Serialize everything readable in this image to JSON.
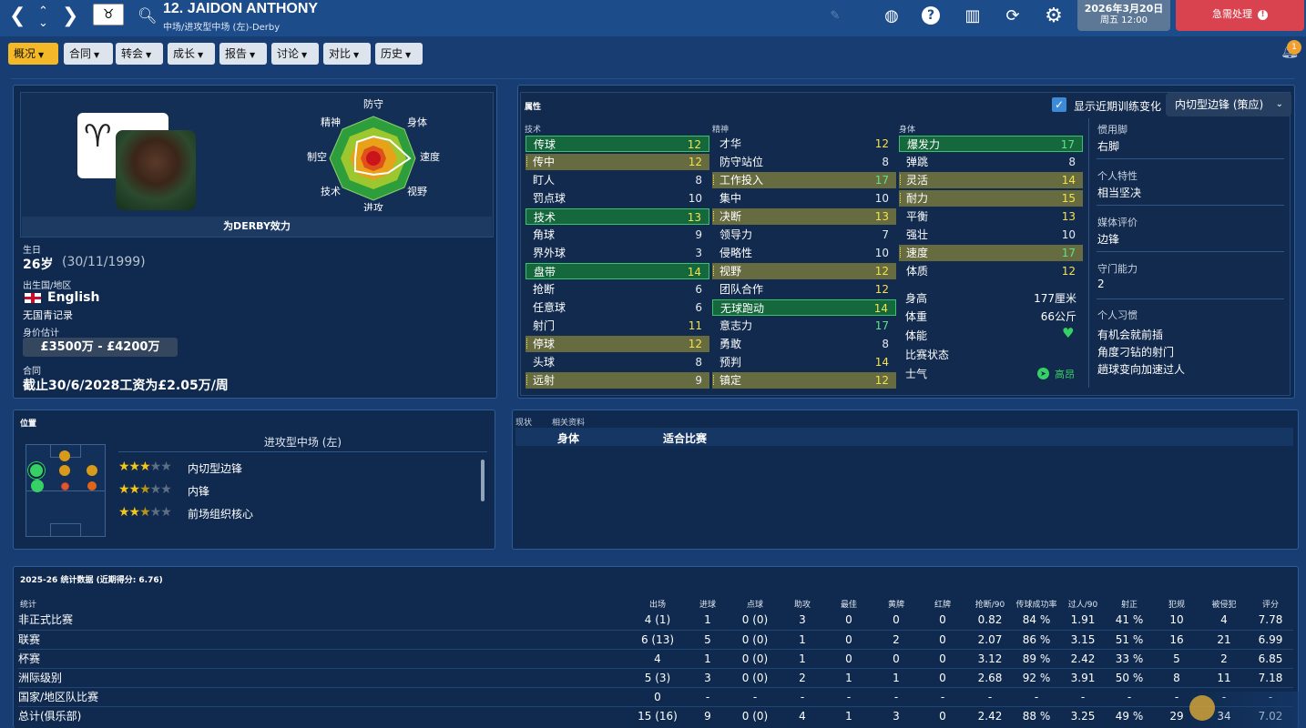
{
  "header": {
    "player_name": "12. JAIDON ANTHONY",
    "position_club": "中场/进攻型中场 (左)-Derby",
    "date": "2026年3月20日",
    "time": "周五 12:00",
    "urgent": "急需处理"
  },
  "tabs": [
    "概况",
    "合同",
    "转会",
    "成长",
    "报告",
    "讨论",
    "对比",
    "历史"
  ],
  "notifications": "1",
  "profile": {
    "plays_for": "为DERBY效力",
    "birth_label": "生日",
    "age": "26岁",
    "dob": "(30/11/1999)",
    "nation_label": "出生国/地区",
    "nation": "English",
    "youth": "无国青记录",
    "value_label": "身价估计",
    "value": "£3500万 - £4200万",
    "contract_label": "合同",
    "contract": "截止30/6/2028工资为£2.05万/周"
  },
  "radar": {
    "labels": [
      "防守",
      "身体",
      "速度",
      "视野",
      "进攻",
      "技术",
      "制空",
      "精神"
    ]
  },
  "attributes": {
    "title": "属性",
    "show_training": "显示近期训练变化",
    "role_select": "内切型边锋 (策应)",
    "technical_title": "技术",
    "mental_title": "精神",
    "physical_title": "身体",
    "technical": [
      {
        "name": "传球",
        "value": "12"
      },
      {
        "name": "传中",
        "value": "12"
      },
      {
        "name": "盯人",
        "value": "8"
      },
      {
        "name": "罚点球",
        "value": "10"
      },
      {
        "name": "技术",
        "value": "13"
      },
      {
        "name": "角球",
        "value": "9"
      },
      {
        "name": "界外球",
        "value": "3"
      },
      {
        "name": "盘带",
        "value": "14"
      },
      {
        "name": "抢断",
        "value": "6"
      },
      {
        "name": "任意球",
        "value": "6"
      },
      {
        "name": "射门",
        "value": "11"
      },
      {
        "name": "停球",
        "value": "12"
      },
      {
        "name": "头球",
        "value": "8"
      },
      {
        "name": "远射",
        "value": "9"
      }
    ],
    "mental": [
      {
        "name": "才华",
        "value": "12"
      },
      {
        "name": "防守站位",
        "value": "8"
      },
      {
        "name": "工作投入",
        "value": "17"
      },
      {
        "name": "集中",
        "value": "10"
      },
      {
        "name": "决断",
        "value": "13"
      },
      {
        "name": "领导力",
        "value": "7"
      },
      {
        "name": "侵略性",
        "value": "10"
      },
      {
        "name": "视野",
        "value": "12"
      },
      {
        "name": "团队合作",
        "value": "12"
      },
      {
        "name": "无球跑动",
        "value": "14"
      },
      {
        "name": "意志力",
        "value": "17"
      },
      {
        "name": "勇敢",
        "value": "8"
      },
      {
        "name": "预判",
        "value": "14"
      },
      {
        "name": "镇定",
        "value": "12"
      }
    ],
    "physical": [
      {
        "name": "爆发力",
        "value": "17"
      },
      {
        "name": "弹跳",
        "value": "8"
      },
      {
        "name": "灵活",
        "value": "14"
      },
      {
        "name": "耐力",
        "value": "15"
      },
      {
        "name": "平衡",
        "value": "13"
      },
      {
        "name": "强壮",
        "value": "10"
      },
      {
        "name": "速度",
        "value": "17"
      },
      {
        "name": "体质",
        "value": "12"
      }
    ],
    "height_label": "身高",
    "height": "177厘米",
    "weight_label": "体重",
    "weight": "66公斤",
    "fitness_label": "体能",
    "form_label": "比赛状态",
    "morale_label": "士气",
    "morale": "高昂"
  },
  "side_info": {
    "foot_label": "惯用脚",
    "foot": "右脚",
    "trait_label": "个人特性",
    "trait": "相当坚决",
    "media_label": "媒体评价",
    "media": "边锋",
    "def_label": "守门能力",
    "def": "2",
    "habits_label": "个人习惯",
    "habits": [
      "有机会就前插",
      "角度刁钻的射门",
      "趟球变向加速过人"
    ]
  },
  "positions": {
    "title": "位置",
    "current": "进攻型中场 (左)",
    "roles": [
      {
        "name": "内切型边锋",
        "stars": 3
      },
      {
        "name": "内锋",
        "stars": 2.5
      },
      {
        "name": "前场组织核心",
        "stars": 2.5
      }
    ]
  },
  "status": {
    "tab1": "现状",
    "tab2": "相关资料",
    "col1": "身体",
    "col2": "适合比赛"
  },
  "stats": {
    "title": "2025-26 统计数据 (近期得分: 6.76)",
    "row_label": "统计",
    "headers": [
      "出场",
      "进球",
      "点球",
      "助攻",
      "最佳",
      "黄牌",
      "红牌",
      "抢断/90",
      "传球成功率",
      "过人/90",
      "射正",
      "犯规",
      "被侵犯",
      "评分"
    ],
    "rows": [
      {
        "name": "非正式比赛",
        "cells": [
          "4 (1)",
          "1",
          "0 (0)",
          "3",
          "0",
          "0",
          "0",
          "0.82",
          "84 %",
          "1.91",
          "41 %",
          "10",
          "4",
          "7.78"
        ]
      },
      {
        "name": "联赛",
        "cells": [
          "6 (13)",
          "5",
          "0 (0)",
          "1",
          "0",
          "2",
          "0",
          "2.07",
          "86 %",
          "3.15",
          "51 %",
          "16",
          "21",
          "6.99"
        ]
      },
      {
        "name": "杯赛",
        "cells": [
          "4",
          "1",
          "0 (0)",
          "1",
          "0",
          "0",
          "0",
          "3.12",
          "89 %",
          "2.42",
          "33 %",
          "5",
          "2",
          "6.85"
        ]
      },
      {
        "name": "洲际级别",
        "cells": [
          "5 (3)",
          "3",
          "0 (0)",
          "2",
          "1",
          "1",
          "0",
          "2.68",
          "92 %",
          "3.91",
          "50 %",
          "8",
          "11",
          "7.18"
        ]
      },
      {
        "name": "国家/地区队比赛",
        "cells": [
          "0",
          "-",
          "-",
          "-",
          "-",
          "-",
          "-",
          "-",
          "-",
          "-",
          "-",
          "-",
          "-",
          "-"
        ]
      },
      {
        "name": "总计(俱乐部)",
        "cells": [
          "15 (16)",
          "9",
          "0 (0)",
          "4",
          "1",
          "3",
          "0",
          "2.42",
          "88 %",
          "3.25",
          "49 %",
          "29",
          "34",
          "7.02"
        ]
      }
    ]
  },
  "colors": {
    "highlight": "#14683c",
    "olive": "#666b40",
    "accent": "#f5b928",
    "urgent": "#d9434f"
  }
}
